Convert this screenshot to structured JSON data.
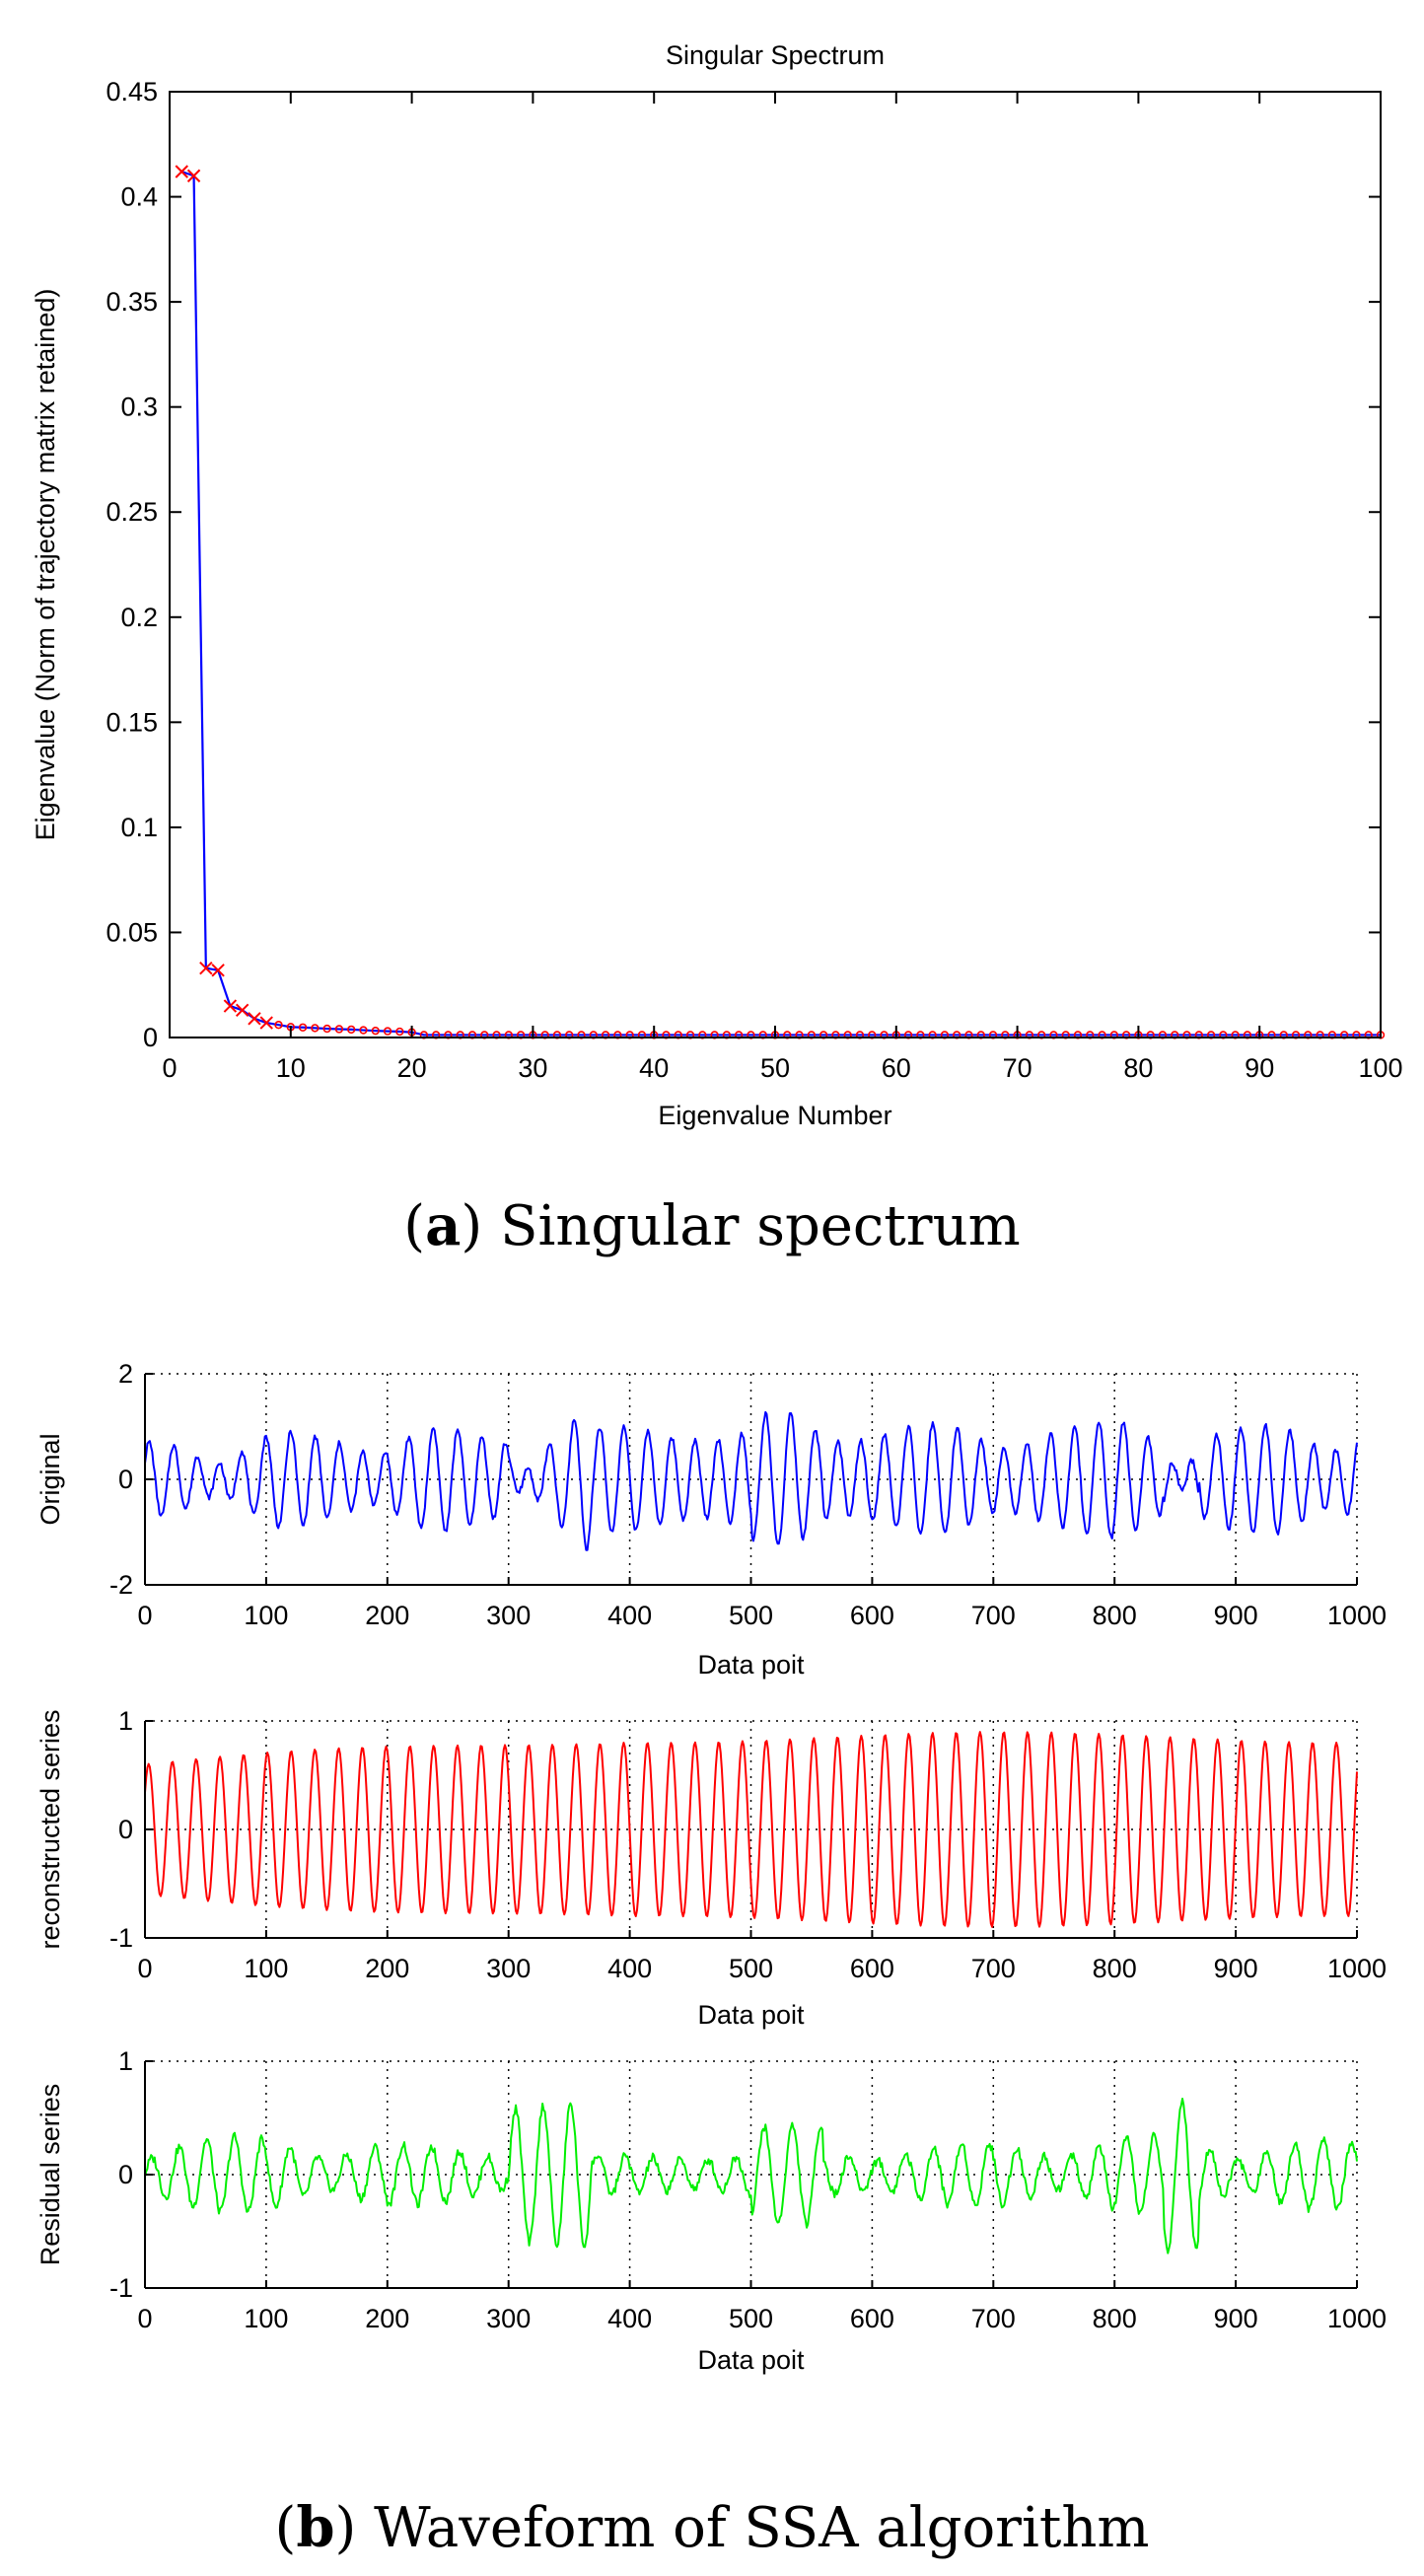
{
  "chart_data": [
    {
      "id": "spectrum",
      "type": "line",
      "title": "Singular Spectrum",
      "xlabel": "Eigenvalue Number",
      "ylabel": "Eigenvalue (Norm of trajectory matrix retained)",
      "xlim": [
        0,
        100
      ],
      "ylim": [
        0,
        0.45
      ],
      "xticks": [
        0,
        10,
        20,
        30,
        40,
        50,
        60,
        70,
        80,
        90,
        100
      ],
      "yticks": [
        0,
        0.05,
        0.1,
        0.15,
        0.2,
        0.25,
        0.3,
        0.35,
        0.4,
        0.45
      ],
      "ytick_labels": [
        "0",
        "0.05",
        "0.1",
        "0.15",
        "0.2",
        "0.25",
        "0.3",
        "0.35",
        "0.4",
        "0.45"
      ],
      "grid": false,
      "line_color": "#0000ff",
      "marker_color": "#ff0000",
      "marker": "x",
      "head_values": [
        0.412,
        0.41,
        0.033,
        0.032,
        0.015,
        0.013,
        0.009,
        0.007,
        0.006,
        0.005,
        0.0048,
        0.0045,
        0.0042,
        0.004,
        0.0038,
        0.0035,
        0.0032,
        0.003,
        0.0028,
        0.0025
      ],
      "tail_value": 0.0012,
      "n_points": 100
    },
    {
      "id": "original",
      "type": "line",
      "xlabel": "Data poit",
      "ylabel": "Original",
      "xlim": [
        0,
        1000
      ],
      "ylim": [
        -2,
        2
      ],
      "xticks": [
        0,
        100,
        200,
        300,
        400,
        500,
        600,
        700,
        800,
        900,
        1000
      ],
      "yticks": [
        -2,
        0,
        2
      ],
      "grid": "dotted",
      "line_color": "#0000ff",
      "signal": "original",
      "n_points": 1000
    },
    {
      "id": "reconstructed",
      "type": "line",
      "xlabel": "Data poit",
      "ylabel": "reconstructed series",
      "xlim": [
        0,
        1000
      ],
      "ylim": [
        -1,
        1
      ],
      "xticks": [
        0,
        100,
        200,
        300,
        400,
        500,
        600,
        700,
        800,
        900,
        1000
      ],
      "yticks": [
        -1,
        0,
        1
      ],
      "grid": "dotted",
      "line_color": "#ff0000",
      "signal": "reconstructed",
      "n_points": 1000
    },
    {
      "id": "residual",
      "type": "line",
      "xlabel": "Data poit",
      "ylabel": "Residual series",
      "xlim": [
        0,
        1000
      ],
      "ylim": [
        -1,
        1
      ],
      "xticks": [
        0,
        100,
        200,
        300,
        400,
        500,
        600,
        700,
        800,
        900,
        1000
      ],
      "yticks": [
        -1,
        0,
        1
      ],
      "grid": "dotted",
      "line_color": "#00ee00",
      "signal": "residual",
      "n_points": 1000
    }
  ],
  "captions": {
    "a": {
      "letter": "a",
      "text": " Singular spectrum"
    },
    "b": {
      "letter": "b",
      "text": " Waveform of SSA algorithm"
    }
  }
}
